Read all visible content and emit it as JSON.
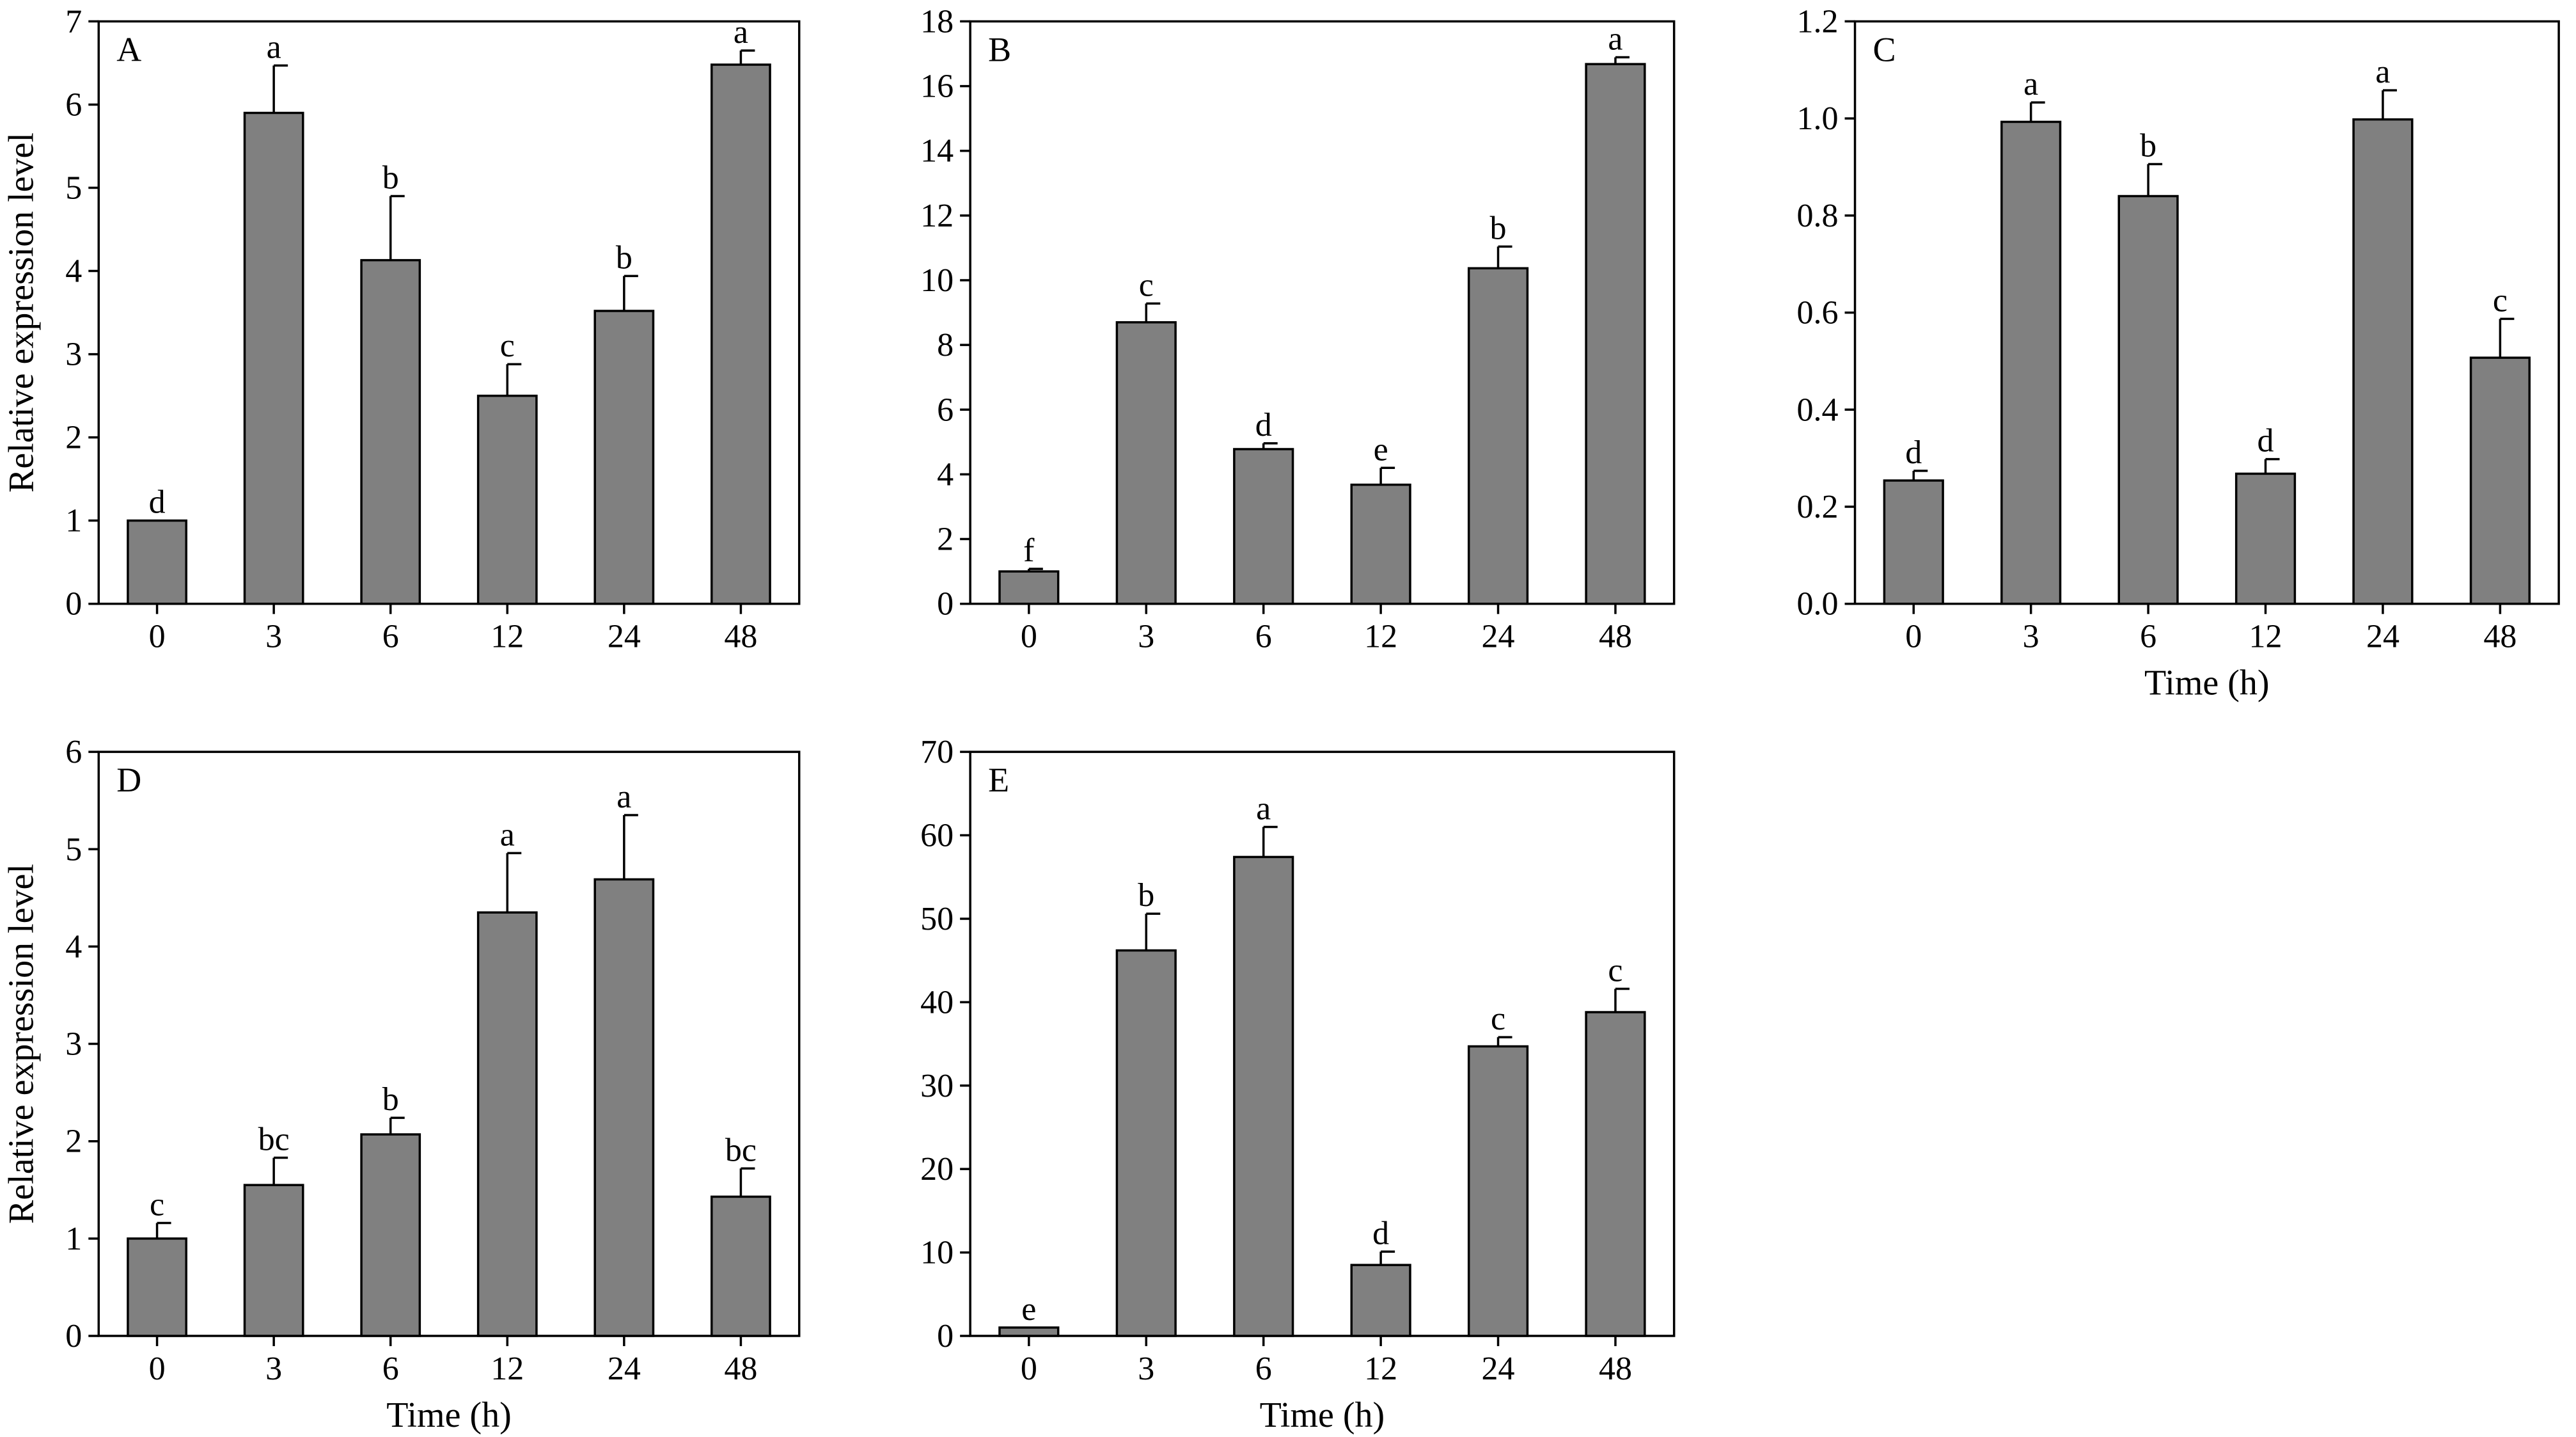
{
  "chart_data": [
    {
      "panel": "A",
      "type": "bar",
      "categories": [
        "0",
        "3",
        "6",
        "12",
        "24",
        "48"
      ],
      "values": [
        1.0,
        5.9,
        4.13,
        2.5,
        3.52,
        6.48
      ],
      "errors": [
        0.0,
        0.57,
        0.77,
        0.38,
        0.42,
        0.17
      ],
      "letters": [
        "d",
        "a",
        "b",
        "c",
        "b",
        "a"
      ],
      "ylim": [
        0,
        7
      ],
      "yticks": [
        "0",
        "1",
        "2",
        "3",
        "4",
        "5",
        "6",
        "7"
      ],
      "ylabel": "Relative expression level",
      "xlabel": "",
      "bar_color": "#808080",
      "grid": false
    },
    {
      "panel": "B",
      "type": "bar",
      "categories": [
        "0",
        "3",
        "6",
        "12",
        "24",
        "48"
      ],
      "values": [
        1.0,
        8.7,
        4.78,
        3.68,
        10.37,
        16.68
      ],
      "errors": [
        0.08,
        0.58,
        0.18,
        0.52,
        0.67,
        0.21
      ],
      "letters": [
        "f",
        "c",
        "d",
        "e",
        "b",
        "a"
      ],
      "ylim": [
        0,
        18
      ],
      "yticks": [
        "0",
        "2",
        "4",
        "6",
        "8",
        "10",
        "12",
        "14",
        "16",
        "18"
      ],
      "ylabel": "",
      "xlabel": "",
      "bar_color": "#808080",
      "grid": false
    },
    {
      "panel": "C",
      "type": "bar",
      "categories": [
        "0",
        "3",
        "6",
        "12",
        "24",
        "48"
      ],
      "values": [
        0.254,
        0.993,
        0.84,
        0.268,
        0.998,
        0.507
      ],
      "errors": [
        0.02,
        0.04,
        0.066,
        0.03,
        0.06,
        0.08
      ],
      "letters": [
        "d",
        "a",
        "b",
        "d",
        "a",
        "c"
      ],
      "ylim": [
        0,
        1.2
      ],
      "yticks": [
        "0.0",
        "0.2",
        "0.4",
        "0.6",
        "0.8",
        "1.0",
        "1.2"
      ],
      "ylabel": "",
      "xlabel": "Time (h)",
      "bar_color": "#808080",
      "grid": false
    },
    {
      "panel": "D",
      "type": "bar",
      "categories": [
        "0",
        "3",
        "6",
        "12",
        "24",
        "48"
      ],
      "values": [
        1.0,
        1.55,
        2.07,
        4.35,
        4.69,
        1.43
      ],
      "errors": [
        0.16,
        0.28,
        0.17,
        0.61,
        0.66,
        0.29
      ],
      "letters": [
        "c",
        "bc",
        "b",
        "a",
        "a",
        "bc"
      ],
      "ylim": [
        0,
        6
      ],
      "yticks": [
        "0",
        "1",
        "2",
        "3",
        "4",
        "5",
        "6"
      ],
      "ylabel": "Relative expression level",
      "xlabel": "Time (h)",
      "bar_color": "#808080",
      "grid": false
    },
    {
      "panel": "E",
      "type": "bar",
      "categories": [
        "0",
        "3",
        "6",
        "12",
        "24",
        "48"
      ],
      "values": [
        1.0,
        46.2,
        57.4,
        8.5,
        34.7,
        38.8
      ],
      "errors": [
        0.0,
        4.4,
        3.6,
        1.6,
        1.1,
        2.8
      ],
      "letters": [
        "e",
        "b",
        "a",
        "d",
        "c",
        "c"
      ],
      "ylim": [
        0,
        70
      ],
      "yticks": [
        "0",
        "10",
        "20",
        "30",
        "40",
        "50",
        "60",
        "70"
      ],
      "ylabel": "",
      "xlabel": "Time (h)",
      "bar_color": "#808080",
      "grid": false
    }
  ]
}
